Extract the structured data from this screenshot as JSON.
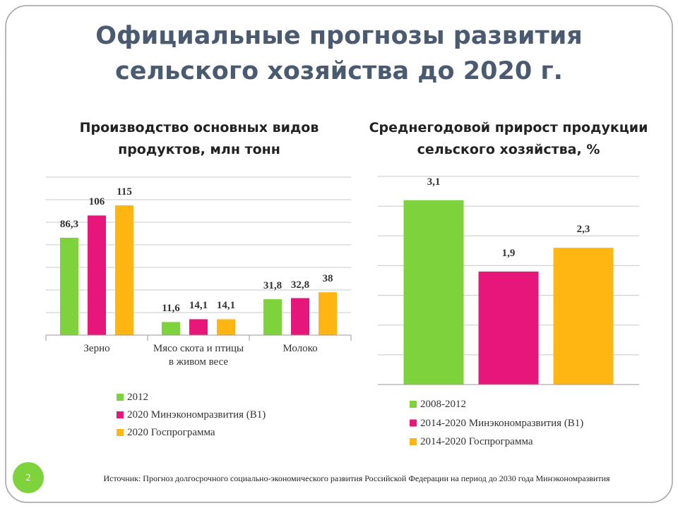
{
  "title": "Официальные прогнозы развития сельского хозяйства до 2020 г.",
  "slide_number": "2",
  "source": "Источник: Прогноз долгосрочного социально-экономического развития Российской Федерации на период до 2030 года Минэкономразвития",
  "chart_data": [
    {
      "type": "bar",
      "title": "Производство основных видов продуктов, млн тонн",
      "categories": [
        "Зерно",
        "Мясо скота и птицы в живом весе",
        "Молоко"
      ],
      "series": [
        {
          "name": "2012",
          "color": "#7ed23c",
          "values": [
            86.3,
            11.6,
            31.8
          ],
          "value_labels": [
            "86,3",
            "11,6",
            "31,8"
          ]
        },
        {
          "name": "2020 Минэкономразвития (В1)",
          "color": "#e6167a",
          "values": [
            106,
            14.1,
            32.8
          ],
          "value_labels": [
            "106",
            "14,1",
            "32,8"
          ]
        },
        {
          "name": "2020 Госпрограмма",
          "color": "#ffb612",
          "values": [
            115,
            14.1,
            38
          ],
          "value_labels": [
            "115",
            "14,1",
            "38"
          ]
        }
      ],
      "ylim": [
        0,
        140
      ],
      "yticks": [
        0,
        20,
        40,
        60,
        80,
        100,
        120,
        140
      ],
      "grid": true
    },
    {
      "type": "bar",
      "title": "Среднегодовой прирост продукции сельского хозяйства, %",
      "categories": [
        null
      ],
      "series": [
        {
          "name": "2008-2012",
          "color": "#7ed23c",
          "values": [
            3.1
          ],
          "value_labels": [
            "3,1"
          ]
        },
        {
          "name": "2014-2020 Минэкономразвития (В1)",
          "color": "#e6167a",
          "values": [
            1.9
          ],
          "value_labels": [
            "1,9"
          ]
        },
        {
          "name": "2014-2020 Госпрограмма",
          "color": "#ffb612",
          "values": [
            2.3
          ],
          "value_labels": [
            "2,3"
          ]
        }
      ],
      "ylim": [
        0,
        3.5
      ],
      "yticks": [
        0,
        0.5,
        1,
        1.5,
        2,
        2.5,
        3,
        3.5
      ],
      "grid": true
    }
  ]
}
